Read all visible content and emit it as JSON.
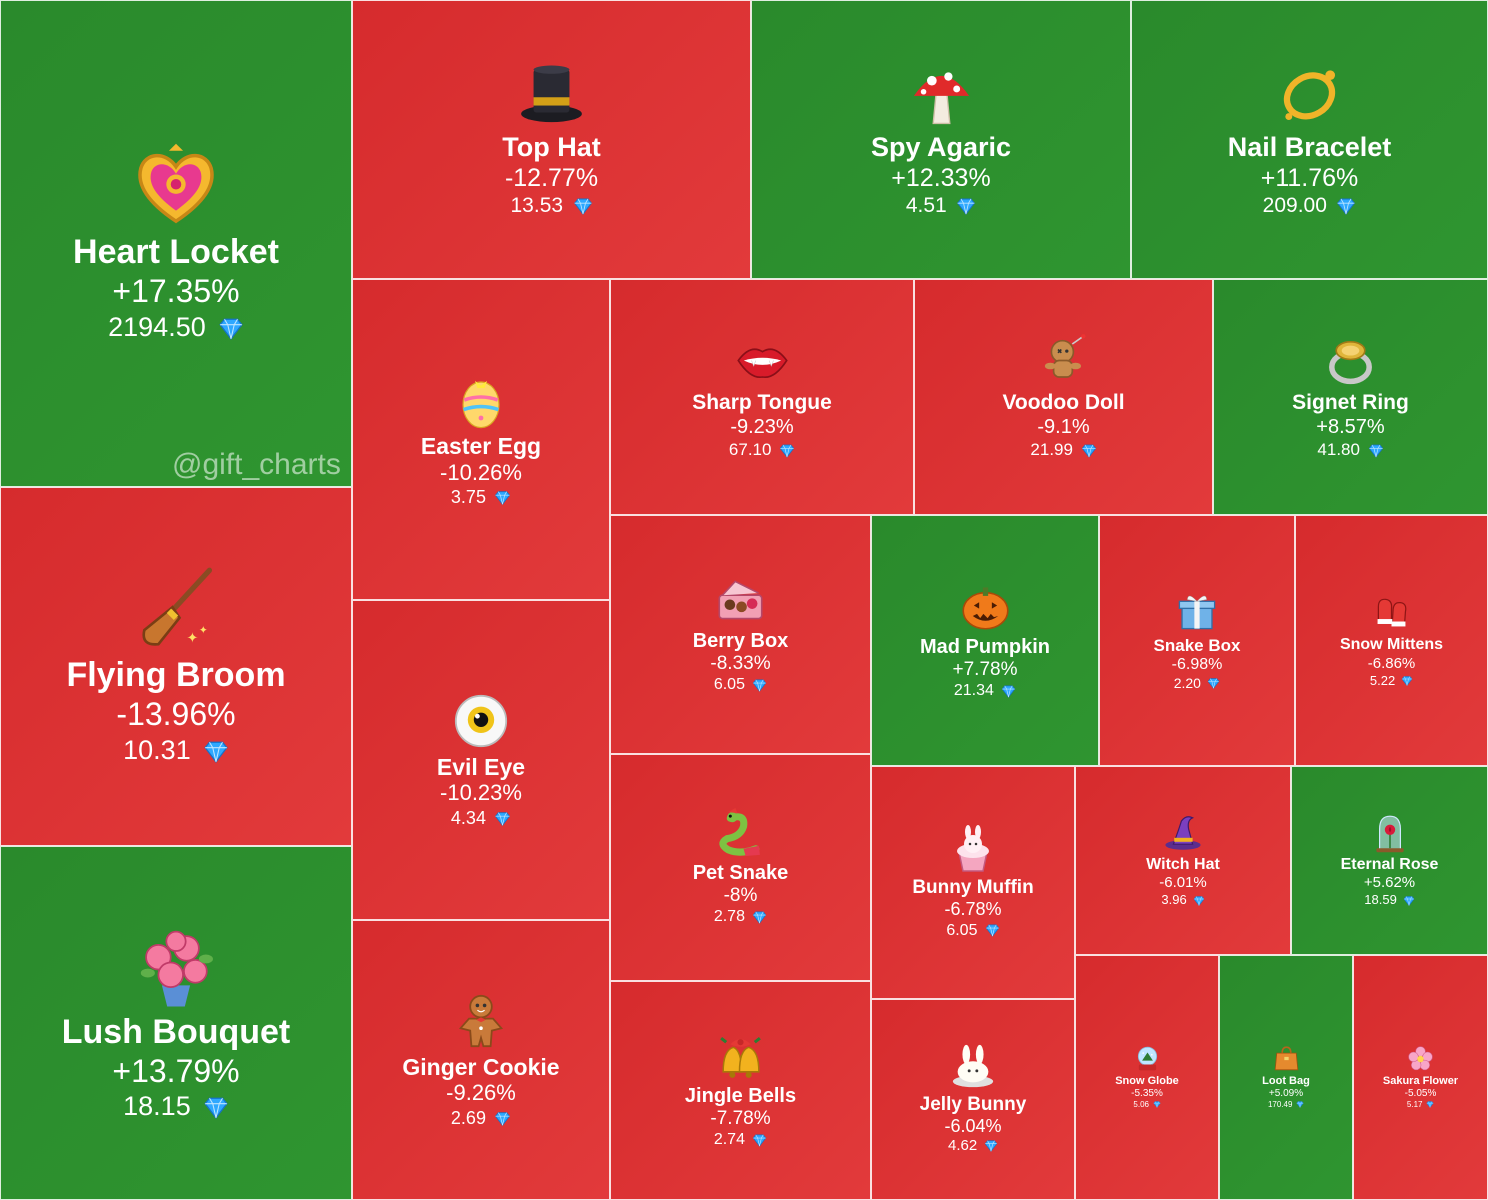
{
  "watermark": "@gift_charts",
  "colors": {
    "up": "#2a8a2c",
    "down": "#d62b2d",
    "gem": "#2ea8ff"
  },
  "chart_data": {
    "type": "treemap",
    "items": [
      {
        "name": "Heart Locket",
        "change": "+17.35%",
        "price": "2194.50",
        "direction": "up",
        "icon": "heart-locket-icon"
      },
      {
        "name": "Flying Broom",
        "change": "-13.96%",
        "price": "10.31",
        "direction": "down",
        "icon": "flying-broom-icon"
      },
      {
        "name": "Lush Bouquet",
        "change": "+13.79%",
        "price": "18.15",
        "direction": "up",
        "icon": "lush-bouquet-icon"
      },
      {
        "name": "Top Hat",
        "change": "-12.77%",
        "price": "13.53",
        "direction": "down",
        "icon": "top-hat-icon"
      },
      {
        "name": "Spy Agaric",
        "change": "+12.33%",
        "price": "4.51",
        "direction": "up",
        "icon": "mushroom-icon"
      },
      {
        "name": "Nail Bracelet",
        "change": "+11.76%",
        "price": "209.00",
        "direction": "up",
        "icon": "bracelet-icon"
      },
      {
        "name": "Easter Egg",
        "change": "-10.26%",
        "price": "3.75",
        "direction": "down",
        "icon": "easter-egg-icon"
      },
      {
        "name": "Sharp Tongue",
        "change": "-9.23%",
        "price": "67.10",
        "direction": "down",
        "icon": "lips-icon"
      },
      {
        "name": "Voodoo Doll",
        "change": "-9.1%",
        "price": "21.99",
        "direction": "down",
        "icon": "voodoo-doll-icon"
      },
      {
        "name": "Signet Ring",
        "change": "+8.57%",
        "price": "41.80",
        "direction": "up",
        "icon": "ring-icon"
      },
      {
        "name": "Evil Eye",
        "change": "-10.23%",
        "price": "4.34",
        "direction": "down",
        "icon": "eyeball-icon"
      },
      {
        "name": "Berry Box",
        "change": "-8.33%",
        "price": "6.05",
        "direction": "down",
        "icon": "berry-box-icon"
      },
      {
        "name": "Mad Pumpkin",
        "change": "+7.78%",
        "price": "21.34",
        "direction": "up",
        "icon": "pumpkin-icon"
      },
      {
        "name": "Snake Box",
        "change": "-6.98%",
        "price": "2.20",
        "direction": "down",
        "icon": "gift-box-icon"
      },
      {
        "name": "Snow Mittens",
        "change": "-6.86%",
        "price": "5.22",
        "direction": "down",
        "icon": "mittens-icon"
      },
      {
        "name": "Pet Snake",
        "change": "-8%",
        "price": "2.78",
        "direction": "down",
        "icon": "snake-icon"
      },
      {
        "name": "Ginger Cookie",
        "change": "-9.26%",
        "price": "2.69",
        "direction": "down",
        "icon": "gingerbread-icon"
      },
      {
        "name": "Jingle Bells",
        "change": "-7.78%",
        "price": "2.74",
        "direction": "down",
        "icon": "bells-icon"
      },
      {
        "name": "Bunny Muffin",
        "change": "-6.78%",
        "price": "6.05",
        "direction": "down",
        "icon": "muffin-icon"
      },
      {
        "name": "Witch Hat",
        "change": "-6.01%",
        "price": "3.96",
        "direction": "down",
        "icon": "witch-hat-icon"
      },
      {
        "name": "Eternal Rose",
        "change": "+5.62%",
        "price": "18.59",
        "direction": "up",
        "icon": "rose-icon"
      },
      {
        "name": "Jelly Bunny",
        "change": "-6.04%",
        "price": "4.62",
        "direction": "down",
        "icon": "jelly-bunny-icon"
      },
      {
        "name": "Snow Globe",
        "change": "-5.35%",
        "price": "5.06",
        "direction": "down",
        "icon": "snow-globe-icon"
      },
      {
        "name": "Loot Bag",
        "change": "+5.09%",
        "price": "170.49",
        "direction": "up",
        "icon": "bag-icon"
      },
      {
        "name": "Sakura Flower",
        "change": "-5.05%",
        "price": "5.17",
        "direction": "down",
        "icon": "flower-icon"
      }
    ]
  }
}
